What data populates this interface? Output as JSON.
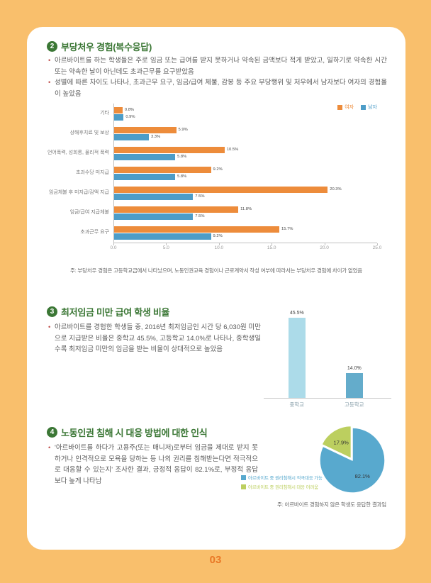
{
  "page_number": "03",
  "colors": {
    "background": "#F9BF6C",
    "card": "#FFFFFF",
    "section_title_green": "#3B7735",
    "body_text": "#595959",
    "bullet_dot": "#C0504D",
    "page_number": "#E97826",
    "female_bar": "#ED8C3B",
    "male_bar": "#4D9DC8",
    "middle_school_bar": "#ACDBE9",
    "high_school_bar": "#64ACCB",
    "pie_positive": "#58A9CE",
    "pie_negative": "#BCCF5F"
  },
  "section_unfair": {
    "number": "2",
    "title": "부당처우 경험(복수응답)",
    "bullets": [
      "아르바이트를 하는 학생들은 주로 임금 또는 급여를 받지 못하거나 약속된 금액보다 적게 받았고, 일하기로 약속한 시간 또는 약속한 날이 아닌데도 초과근무를 요구받았음",
      "성별에 따른 차이도 나타나, 초과근무 요구, 임금/급여 체불, 감봉 등 주요 부당행위 및 처우에서 남자보다 여자의 경험율이 높았음"
    ],
    "footnote": "주: 부당처우 경험은 고등학교급에서 나타났으며, 노동인권교육 경험이나 근로계약서 작성 여부에 따라서는 부당처우 경험에 차이가 없었음"
  },
  "section_minwage": {
    "number": "3",
    "title": "최저임금 미만 급여 학생 비율",
    "bullets": [
      "아르바이트를 경험한 학생들 중, 2016년 최저임금인 시간 당 6,030원 미만으로 지급받은 비율은 중학교 45.5%, 고등학교 14.0%로 나타나, 중학생일수록 최저임금 미만의 임금을 받는 비율이 상대적으로 높았음"
    ]
  },
  "section_response": {
    "number": "4",
    "title": "노동인권 침해 시 대응 방법에 대한 인식",
    "bullets": [
      "'아르바이트를 하다가 고용주(또는 매니저)로부터 임금을 제대로 받지 못하거나 인격적으로 모욕을 당하는 등 나의 권리를 침해받는다면 적극적으로 대응할 수 있는지' 조사한 결과, 긍정적 응답이 82.1%로, 부정적 응답보다 높게 나타남"
    ],
    "footnote": "주: 아르바이트 경험하지 않은 학생도 응답한 결과임"
  },
  "chart_data": [
    {
      "type": "bar",
      "orientation": "horizontal",
      "title": "부당처우 경험(복수응답)",
      "categories": [
        "기타",
        "상해후치료 및 보상",
        "언어폭력, 성희롱, 물리적 폭력",
        "초과수당 미지급",
        "임금체불 후 미지급/감액 지급",
        "임금/급여 지급체불",
        "초과근무 요구"
      ],
      "series": [
        {
          "name": "여자",
          "color": "#ED8C3B",
          "values": [
            0.8,
            5.9,
            10.5,
            9.2,
            20.3,
            11.8,
            15.7
          ]
        },
        {
          "name": "남자",
          "color": "#4D9DC8",
          "values": [
            0.9,
            3.3,
            5.8,
            5.8,
            7.5,
            7.5,
            9.2
          ]
        }
      ],
      "xlim": [
        0,
        25
      ],
      "xticks": [
        "0.0",
        "5.0",
        "10.0",
        "15.0",
        "20.0",
        "25.0"
      ],
      "legend_position": "top-right",
      "value_suffix": "%",
      "grid": false
    },
    {
      "type": "bar",
      "orientation": "vertical",
      "title": "최저임금 미만 급여 학생 비율",
      "categories": [
        "중학교",
        "고등학교"
      ],
      "values": [
        45.5,
        14.0
      ],
      "colors": [
        "#ACDBE9",
        "#64ACCB"
      ],
      "ylim": [
        0,
        50
      ],
      "value_suffix": "%",
      "grid": false
    },
    {
      "type": "pie",
      "title": "노동인권 침해 시 대응 방법에 대한 인식",
      "labels": [
        "아르바이트 중 권리침해시 적극대응 가능",
        "아르바이트 중 권리침해시 대응 어려움"
      ],
      "values": [
        82.1,
        17.9
      ],
      "colors": [
        "#58A9CE",
        "#BCCF5F"
      ],
      "value_suffix": "%",
      "legend_position": "left"
    }
  ]
}
